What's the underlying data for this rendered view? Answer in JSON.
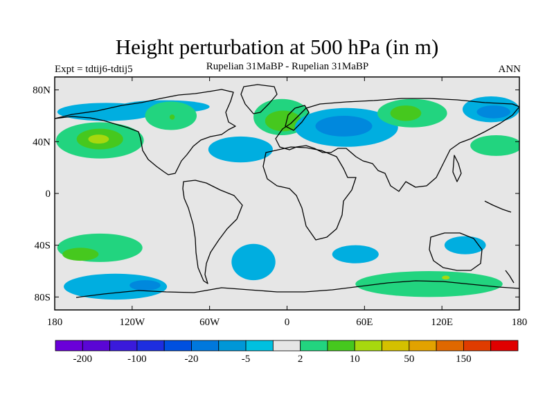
{
  "header": {
    "title": "Height perturbation at 500 hPa (in m)",
    "experiment": "Expt = tdtij6-tdtij5",
    "subtitle": "Rupelian  31MaBP - Rupelian  31MaBP",
    "season": "ANN"
  },
  "map": {
    "projection": "cylindrical equidistant",
    "lon_range": [
      -180,
      180
    ],
    "lat_range": [
      -90,
      90
    ],
    "lat_ticks": [
      {
        "lat": 80,
        "label": "80N"
      },
      {
        "lat": 40,
        "label": "40N"
      },
      {
        "lat": 0,
        "label": "0"
      },
      {
        "lat": -40,
        "label": "40S"
      },
      {
        "lat": -80,
        "label": "80S"
      }
    ],
    "lon_ticks": [
      {
        "lon": -180,
        "label": "180"
      },
      {
        "lon": -120,
        "label": "120W"
      },
      {
        "lon": -60,
        "label": "60W"
      },
      {
        "lon": 0,
        "label": "0"
      },
      {
        "lon": 60,
        "label": "60E"
      },
      {
        "lon": 120,
        "label": "120E"
      },
      {
        "lon": 180,
        "label": "180"
      }
    ],
    "background_color": "#e6e6e6",
    "anomaly_regions": [
      {
        "name": "n-pacific-high",
        "center": [
          -145,
          41
        ],
        "radii": [
          34,
          14
        ],
        "color": "#22d47f"
      },
      {
        "name": "n-pacific-high-core",
        "center": [
          -145,
          42
        ],
        "radii": [
          18,
          8
        ],
        "color": "#46c81e"
      },
      {
        "name": "n-pacific-high-peak",
        "center": [
          -146,
          42
        ],
        "radii": [
          8,
          3.5
        ],
        "color": "#a7d80e"
      },
      {
        "name": "arctic-low-w",
        "center": [
          -140,
          63
        ],
        "radii": [
          38,
          7
        ],
        "color": "#00aee0"
      },
      {
        "name": "arctic-low-w2",
        "center": [
          -95,
          67
        ],
        "radii": [
          35,
          5
        ],
        "color": "#00aee0"
      },
      {
        "name": "n-america-high",
        "center": [
          -90,
          60
        ],
        "radii": [
          20,
          11
        ],
        "color": "#22d47f"
      },
      {
        "name": "n-america-high-dot",
        "center": [
          -89,
          59
        ],
        "radii": [
          2,
          2
        ],
        "color": "#46c81e"
      },
      {
        "name": "n-atlantic-low",
        "center": [
          -36,
          34
        ],
        "radii": [
          25,
          10
        ],
        "color": "#00aee0"
      },
      {
        "name": "europe-high",
        "center": [
          -4,
          59
        ],
        "radii": [
          22,
          14
        ],
        "color": "#22d47f"
      },
      {
        "name": "europe-high-core",
        "center": [
          -3,
          56
        ],
        "radii": [
          14,
          8
        ],
        "color": "#46c81e"
      },
      {
        "name": "eurasia-low",
        "center": [
          46,
          51
        ],
        "radii": [
          40,
          15
        ],
        "color": "#00aee0"
      },
      {
        "name": "eurasia-low-core",
        "center": [
          44,
          52
        ],
        "radii": [
          22,
          8
        ],
        "color": "#0088dd"
      },
      {
        "name": "central-asia-high",
        "center": [
          97,
          62
        ],
        "radii": [
          27,
          11
        ],
        "color": "#22d47f"
      },
      {
        "name": "central-asia-high-core",
        "center": [
          92,
          62
        ],
        "radii": [
          12,
          6
        ],
        "color": "#46c81e"
      },
      {
        "name": "nw-pacific-low",
        "center": [
          158,
          65
        ],
        "radii": [
          22,
          10
        ],
        "color": "#00aee0"
      },
      {
        "name": "nw-pacific-low-core",
        "center": [
          160,
          63
        ],
        "radii": [
          13,
          5
        ],
        "color": "#0088dd"
      },
      {
        "name": "nw-pacific-high",
        "center": [
          162,
          37
        ],
        "radii": [
          20,
          8
        ],
        "color": "#22d47f"
      },
      {
        "name": "s-pacific-high",
        "center": [
          -145,
          -42
        ],
        "radii": [
          33,
          11
        ],
        "color": "#22d47f"
      },
      {
        "name": "s-pacific-high-core",
        "center": [
          -160,
          -47
        ],
        "radii": [
          14,
          5
        ],
        "color": "#46c81e"
      },
      {
        "name": "s-pacific-low",
        "center": [
          -133,
          -72
        ],
        "radii": [
          40,
          10
        ],
        "color": "#00aee0"
      },
      {
        "name": "s-pacific-low-core",
        "center": [
          -110,
          -71
        ],
        "radii": [
          12,
          4
        ],
        "color": "#0088dd"
      },
      {
        "name": "s-atlantic-low",
        "center": [
          -26,
          -53
        ],
        "radii": [
          17,
          14
        ],
        "color": "#00aee0"
      },
      {
        "name": "s-indian-low",
        "center": [
          53,
          -47
        ],
        "radii": [
          18,
          7
        ],
        "color": "#00aee0"
      },
      {
        "name": "australia-low",
        "center": [
          138,
          -40
        ],
        "radii": [
          16,
          7
        ],
        "color": "#00aee0"
      },
      {
        "name": "s-indian-high",
        "center": [
          110,
          -70
        ],
        "radii": [
          57,
          10
        ],
        "color": "#22d47f"
      },
      {
        "name": "s-indian-high-dot",
        "center": [
          123,
          -65
        ],
        "radii": [
          3,
          1.5
        ],
        "color": "#a7d80e"
      }
    ],
    "coastline_color": "#000000"
  },
  "colorbar": {
    "colors": [
      "#6a00d9",
      "#5a06d5",
      "#3a1adb",
      "#1d2ee0",
      "#0050e0",
      "#0078dd",
      "#0097d7",
      "#00c0e0",
      "#e6e6e6",
      "#22d47f",
      "#46c81e",
      "#a7d80e",
      "#d4c000",
      "#e2a200",
      "#e06800",
      "#e03c00",
      "#e00000"
    ],
    "labels": [
      {
        "boundary": 1,
        "text": "-200"
      },
      {
        "boundary": 3,
        "text": "-100"
      },
      {
        "boundary": 5,
        "text": "-20"
      },
      {
        "boundary": 7,
        "text": "-5"
      },
      {
        "boundary": 9,
        "text": "2"
      },
      {
        "boundary": 11,
        "text": "10"
      },
      {
        "boundary": 13,
        "text": "50"
      },
      {
        "boundary": 15,
        "text": "150"
      }
    ]
  }
}
